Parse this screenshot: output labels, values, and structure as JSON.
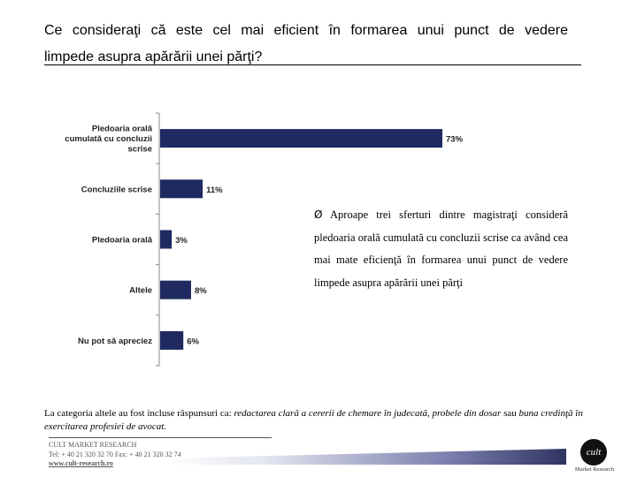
{
  "title": {
    "line1": "Ce consideraţi că este cel mai eficient în formarea unui punct de vedere",
    "line2": "limpede asupra apărării unei părţi?"
  },
  "chart_data": {
    "type": "bar",
    "orientation": "horizontal",
    "title": "Ce consideraţi că este cel mai eficient în formarea unui punct de vedere limpede asupra apărării unei părţi?",
    "categories": [
      [
        "Pledoaria orală",
        "cumulată cu concluzii",
        "scrise"
      ],
      [
        "Concluziile scrise"
      ],
      [
        "Pledoaria orală"
      ],
      [
        "Altele"
      ],
      [
        "Nu pot să apreciez"
      ]
    ],
    "values": [
      73,
      11,
      3,
      8,
      6
    ],
    "value_labels": [
      "73%",
      "11%",
      "3%",
      "8%",
      "6%"
    ],
    "unit": "%",
    "xlim": [
      0,
      100
    ],
    "bar_color": "#1f2a60"
  },
  "bullet": {
    "marker": "Ø",
    "text": "Aproape trei sferturi dintre magistraţi consideră pledoaria orală cumulată cu concluzii scrise ca având cea mai mate eficienţă în formarea unui punct de vedere limpede asupra apărării unei părţi"
  },
  "note": {
    "lead": "La categoria altele au fost incluse răspunsuri ca: ",
    "italic": "redactarea clară a cererii de chemare în judecată, probele din dosar",
    "middle": " sau ",
    "italic2": "buna credinţă în exercitarea profesiei de avocat."
  },
  "footer": {
    "company": "CULT MARKET RESEARCH",
    "contact": "Tel: + 40 21 320 32 70 Fax: + 40 21 320 32 74",
    "url": "www.cult-research.ro",
    "logo_mark": "cult",
    "logo_caption": "Market Research"
  }
}
